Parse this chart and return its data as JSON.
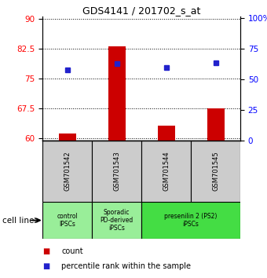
{
  "title": "GDS4141 / 201702_s_at",
  "samples": [
    "GSM701542",
    "GSM701543",
    "GSM701544",
    "GSM701545"
  ],
  "bar_values": [
    61.2,
    83.0,
    63.2,
    67.5
  ],
  "bar_bottom": 59.5,
  "ylim_left": [
    59.5,
    90.5
  ],
  "ylim_right": [
    0,
    101
  ],
  "yticks_left": [
    60,
    67.5,
    75,
    82.5,
    90
  ],
  "yticks_right": [
    0,
    25,
    50,
    75,
    100
  ],
  "ytick_labels_left": [
    "60",
    "67.5",
    "75",
    "82.5",
    "90"
  ],
  "ytick_labels_right": [
    "0",
    "25",
    "50",
    "75",
    "100%"
  ],
  "pct_values": [
    57,
    62,
    59,
    63
  ],
  "bar_color": "#cc0000",
  "dot_color": "#2222cc",
  "bar_width": 0.35,
  "sample_box_color": "#cccccc",
  "group_info": [
    {
      "label": "control\nIPSCs",
      "start": 0,
      "end": 1,
      "color": "#99ee99"
    },
    {
      "label": "Sporadic\nPD-derived\niPSCs",
      "start": 1,
      "end": 2,
      "color": "#99ee99"
    },
    {
      "label": "presenilin 2 (PS2)\niPSCs",
      "start": 2,
      "end": 4,
      "color": "#44dd44"
    }
  ],
  "cell_line_label": "cell line",
  "legend_count": "count",
  "legend_pct": "percentile rank within the sample"
}
